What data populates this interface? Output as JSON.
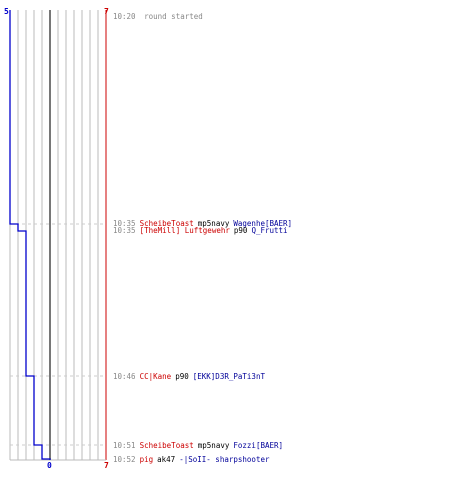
{
  "colors": {
    "team_blue": "#0000cc",
    "team_red": "#cc0000",
    "grid": "#bbbbbb",
    "center_line": "#777777",
    "time": "#888888",
    "weapon": "#000000",
    "dash": "#cccccc"
  },
  "scores": {
    "blue_start": "5",
    "red_start": "7",
    "blue_end": "0",
    "red_end": "7"
  },
  "round_started": {
    "time": "10:20",
    "text": "round started",
    "blue_alive": 5,
    "red_alive": 7
  },
  "kills": [
    {
      "time": "10:35",
      "killer": "ScheibeToast",
      "killer_team": "red",
      "weapon": "mp5navy",
      "victim": "Wagenhe[BAER]",
      "victim_team": "blue",
      "blue_alive": 4,
      "red_alive": 7
    },
    {
      "time": "10:35",
      "killer": "[TheMill] Luftgewehr",
      "killer_team": "red",
      "weapon": "p90",
      "victim": "Q_Frutti",
      "victim_team": "blue",
      "blue_alive": 3,
      "red_alive": 7
    },
    {
      "time": "10:46",
      "killer": "CC|Kane",
      "killer_team": "red",
      "weapon": "p90",
      "victim": "[EKK]D3R_PaTi3nT",
      "victim_team": "blue",
      "blue_alive": 2,
      "red_alive": 7
    },
    {
      "time": "10:51",
      "killer": "ScheibeToast",
      "killer_team": "red",
      "weapon": "mp5navy",
      "victim": "Fozzi[BAER]",
      "victim_team": "blue",
      "blue_alive": 1,
      "red_alive": 7
    },
    {
      "time": "10:52",
      "killer": "pig",
      "killer_team": "red",
      "weapon": "ak47",
      "victim": "-|SoII- sharpshooter",
      "victim_team": "blue",
      "blue_alive": 0,
      "red_alive": 7
    }
  ]
}
